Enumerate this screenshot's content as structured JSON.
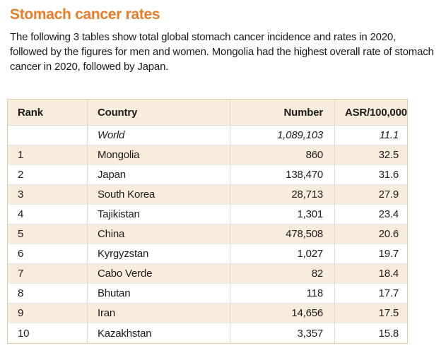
{
  "page": {
    "title": "Stomach cancer rates",
    "intro": "The following 3 tables show total global stomach cancer incidence and rates in 2020, followed by the figures for men and women. Mongolia had the highest overall rate of stomach cancer in 2020, followed by Japan."
  },
  "colors": {
    "title_orange": "#ea7b28",
    "table_header_bg": "#f8ecdc",
    "row_shaded_bg": "#f8ecdc",
    "outer_border": "#ddcbaa",
    "text": "#1c1c1c"
  },
  "table": {
    "columns": [
      "Rank",
      "Country",
      "Number",
      "ASR/100,000"
    ],
    "rows": [
      {
        "rank": "",
        "country": "World",
        "number": "1,089,103",
        "asr": "11.1",
        "italic": true,
        "shaded": false
      },
      {
        "rank": "1",
        "country": "Mongolia",
        "number": "860",
        "asr": "32.5",
        "italic": false,
        "shaded": true
      },
      {
        "rank": "2",
        "country": "Japan",
        "number": "138,470",
        "asr": "31.6",
        "italic": false,
        "shaded": false
      },
      {
        "rank": "3",
        "country": "South Korea",
        "number": "28,713",
        "asr": "27.9",
        "italic": false,
        "shaded": true
      },
      {
        "rank": "4",
        "country": "Tajikistan",
        "number": "1,301",
        "asr": "23.4",
        "italic": false,
        "shaded": false
      },
      {
        "rank": "5",
        "country": "China",
        "number": "478,508",
        "asr": "20.6",
        "italic": false,
        "shaded": true
      },
      {
        "rank": "6",
        "country": "Kyrgyzstan",
        "number": "1,027",
        "asr": "19.7",
        "italic": false,
        "shaded": false
      },
      {
        "rank": "7",
        "country": "Cabo Verde",
        "number": "82",
        "asr": "18.4",
        "italic": false,
        "shaded": true
      },
      {
        "rank": "8",
        "country": "Bhutan",
        "number": "118",
        "asr": "17.7",
        "italic": false,
        "shaded": false
      },
      {
        "rank": "9",
        "country": "Iran",
        "number": "14,656",
        "asr": "17.5",
        "italic": false,
        "shaded": true
      },
      {
        "rank": "10",
        "country": "Kazakhstan",
        "number": "3,357",
        "asr": "15.8",
        "italic": false,
        "shaded": false
      }
    ]
  },
  "chart_data": {
    "type": "table",
    "title": "Stomach cancer rates",
    "columns": [
      "Rank",
      "Country",
      "Number",
      "ASR/100,000"
    ],
    "rows": [
      [
        "",
        "World",
        "1,089,103",
        "11.1"
      ],
      [
        "1",
        "Mongolia",
        "860",
        "32.5"
      ],
      [
        "2",
        "Japan",
        "138,470",
        "31.6"
      ],
      [
        "3",
        "South Korea",
        "28,713",
        "27.9"
      ],
      [
        "4",
        "Tajikistan",
        "1,301",
        "23.4"
      ],
      [
        "5",
        "China",
        "478,508",
        "20.6"
      ],
      [
        "6",
        "Kyrgyzstan",
        "1,027",
        "19.7"
      ],
      [
        "7",
        "Cabo Verde",
        "82",
        "18.4"
      ],
      [
        "8",
        "Bhutan",
        "118",
        "17.7"
      ],
      [
        "9",
        "Iran",
        "14,656",
        "17.5"
      ],
      [
        "10",
        "Kazakhstan",
        "3,357",
        "15.8"
      ]
    ]
  }
}
